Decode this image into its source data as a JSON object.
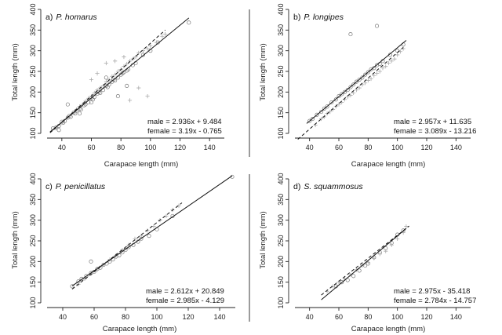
{
  "chart_data": [
    {
      "type": "scatter",
      "panel_label": "a)",
      "species": "P. homarus",
      "xlabel": "Carapace length (mm)",
      "ylabel": "Total length (mm)",
      "xlim": [
        30,
        150
      ],
      "ylim": [
        100,
        400
      ],
      "xticks": [
        40,
        60,
        80,
        100,
        120,
        140
      ],
      "yticks": [
        100,
        150,
        200,
        250,
        300,
        350,
        400
      ],
      "show_x_ticklabels": true,
      "male_equation": "male = 2.936x + 9.484",
      "female_equation": "female = 3.19x - 0.765",
      "male_fit": {
        "slope": 2.936,
        "intercept": 9.484,
        "x_range": [
          32,
          126
        ]
      },
      "female_fit": {
        "slope": 3.19,
        "intercept": -0.765,
        "x_range": [
          32,
          110
        ]
      },
      "series": [
        {
          "name": "male",
          "marker": "circle",
          "x": [
            34,
            36,
            38,
            40,
            41,
            42,
            44,
            45,
            46,
            48,
            49,
            50,
            52,
            53,
            55,
            56,
            58,
            60,
            61,
            62,
            64,
            65,
            66,
            68,
            70,
            71,
            72,
            74,
            75,
            76,
            78,
            80,
            81,
            82,
            84,
            85,
            88,
            90,
            95,
            100,
            105,
            126,
            38,
            44,
            52,
            60,
            70,
            78,
            84
          ],
          "y": [
            112,
            114,
            118,
            128,
            126,
            130,
            138,
            142,
            140,
            150,
            148,
            155,
            160,
            158,
            168,
            170,
            175,
            185,
            182,
            188,
            196,
            200,
            198,
            205,
            215,
            212,
            218,
            225,
            230,
            228,
            235,
            242,
            245,
            248,
            252,
            255,
            265,
            270,
            290,
            300,
            320,
            368,
            108,
            170,
            148,
            175,
            235,
            190,
            215
          ]
        },
        {
          "name": "female",
          "marker": "plus",
          "x": [
            36,
            40,
            44,
            48,
            50,
            52,
            54,
            56,
            58,
            60,
            62,
            64,
            66,
            68,
            70,
            72,
            74,
            76,
            78,
            80,
            82,
            84,
            86,
            88,
            90,
            92,
            95,
            98,
            100,
            104,
            108,
            110,
            60,
            64,
            70,
            76,
            82,
            86,
            92,
            98
          ],
          "y": [
            112,
            125,
            138,
            150,
            158,
            165,
            170,
            178,
            185,
            190,
            198,
            205,
            210,
            215,
            225,
            230,
            238,
            242,
            250,
            255,
            262,
            268,
            275,
            280,
            285,
            295,
            300,
            305,
            312,
            320,
            335,
            340,
            230,
            245,
            270,
            275,
            285,
            180,
            210,
            190
          ]
        }
      ]
    },
    {
      "type": "scatter",
      "panel_label": "b)",
      "species": "P. longipes",
      "xlabel": "Carapace length (mm)",
      "ylabel": "Total length (mm)",
      "xlim": [
        30,
        150
      ],
      "ylim": [
        100,
        400
      ],
      "xticks": [
        40,
        60,
        80,
        100,
        120,
        140
      ],
      "yticks": [
        100,
        150,
        200,
        250,
        300,
        350,
        400
      ],
      "show_x_ticklabels": true,
      "male_equation": "male = 2.957x + 11.635",
      "female_equation": "female = 3.089x - 13.216",
      "male_fit": {
        "slope": 2.957,
        "intercept": 11.635,
        "x_range": [
          38,
          106
        ]
      },
      "female_fit": {
        "slope": 3.089,
        "intercept": -13.216,
        "x_range": [
          32,
          104
        ]
      },
      "series": [
        {
          "name": "male",
          "marker": "circle",
          "x": [
            40,
            42,
            45,
            48,
            50,
            52,
            55,
            58,
            60,
            62,
            64,
            66,
            68,
            70,
            72,
            74,
            76,
            78,
            80,
            82,
            84,
            86,
            88,
            90,
            95,
            100,
            104,
            68,
            86
          ],
          "y": [
            130,
            135,
            145,
            152,
            160,
            165,
            175,
            182,
            190,
            195,
            200,
            205,
            212,
            218,
            225,
            230,
            235,
            242,
            248,
            255,
            258,
            265,
            268,
            275,
            290,
            300,
            315,
            340,
            360
          ]
        },
        {
          "name": "female",
          "marker": "plus",
          "x": [
            44,
            48,
            50,
            52,
            54,
            56,
            58,
            60,
            62,
            64,
            66,
            68,
            70,
            72,
            74,
            76,
            78,
            80,
            82,
            84,
            86,
            88,
            90,
            92,
            94,
            96,
            98,
            100,
            102,
            104
          ],
          "y": [
            120,
            135,
            140,
            148,
            152,
            158,
            165,
            170,
            175,
            182,
            188,
            192,
            198,
            205,
            210,
            218,
            222,
            228,
            232,
            240,
            245,
            250,
            258,
            262,
            270,
            275,
            280,
            290,
            298,
            305
          ]
        }
      ]
    },
    {
      "type": "scatter",
      "panel_label": "c)",
      "species": "P. penicillatus",
      "xlabel": "Carapace length (mm)",
      "ylabel": "Total length (mm)",
      "xlim": [
        30,
        150
      ],
      "ylim": [
        100,
        400
      ],
      "xticks": [
        40,
        60,
        80,
        100,
        120,
        140
      ],
      "yticks": [
        100,
        150,
        200,
        250,
        300,
        350,
        400
      ],
      "show_x_ticklabels": true,
      "male_equation": "male = 2.612x + 20.849",
      "female_equation": "female = 2.985x - 4.129",
      "male_fit": {
        "slope": 2.612,
        "intercept": 20.849,
        "x_range": [
          46,
          148
        ]
      },
      "female_fit": {
        "slope": 2.985,
        "intercept": -4.129,
        "x_range": [
          46,
          116
        ]
      },
      "series": [
        {
          "name": "male",
          "marker": "circle",
          "x": [
            46,
            50,
            52,
            55,
            58,
            60,
            62,
            64,
            66,
            68,
            70,
            72,
            74,
            76,
            78,
            80,
            82,
            85,
            88,
            90,
            95,
            100,
            110,
            148,
            58
          ],
          "y": [
            140,
            152,
            158,
            165,
            172,
            175,
            182,
            185,
            192,
            195,
            200,
            205,
            212,
            215,
            222,
            228,
            235,
            240,
            248,
            255,
            262,
            278,
            310,
            405,
            200
          ]
        },
        {
          "name": "female",
          "marker": "plus",
          "x": [
            50,
            54,
            58,
            62,
            66,
            70,
            74,
            78,
            82,
            86,
            90,
            94,
            98,
            102,
            106,
            110,
            114
          ],
          "y": [
            145,
            158,
            170,
            180,
            192,
            205,
            215,
            228,
            240,
            255,
            262,
            275,
            285,
            300,
            310,
            325,
            335
          ]
        }
      ]
    },
    {
      "type": "scatter",
      "panel_label": "d)",
      "species": "S. squammosus",
      "xlabel": "Carapace length (mm)",
      "ylabel": "Total length (mm)",
      "xlim": [
        30,
        150
      ],
      "ylim": [
        100,
        400
      ],
      "xticks": [
        40,
        60,
        80,
        100,
        120,
        140
      ],
      "yticks": [
        100,
        150,
        200,
        250,
        300,
        350,
        400
      ],
      "show_x_ticklabels": true,
      "male_equation": "male = 2.975x - 35.418",
      "female_equation": "female = 2.784x - 14.757",
      "male_fit": {
        "slope": 2.975,
        "intercept": -35.418,
        "x_range": [
          48,
          106
        ]
      },
      "female_fit": {
        "slope": 2.784,
        "intercept": -14.757,
        "x_range": [
          48,
          108
        ]
      },
      "series": [
        {
          "name": "male",
          "marker": "circle",
          "x": [
            58,
            62,
            66,
            70,
            74,
            78,
            80,
            84,
            88,
            92,
            96,
            100,
            104
          ],
          "y": [
            140,
            150,
            155,
            165,
            178,
            190,
            195,
            210,
            222,
            232,
            245,
            265,
            275
          ]
        },
        {
          "name": "female",
          "marker": "plus",
          "x": [
            52,
            56,
            60,
            64,
            68,
            72,
            76,
            80,
            84,
            88,
            92,
            96,
            100,
            104,
            106
          ],
          "y": [
            128,
            140,
            150,
            158,
            168,
            180,
            190,
            198,
            208,
            218,
            225,
            240,
            255,
            270,
            285
          ]
        }
      ]
    }
  ]
}
